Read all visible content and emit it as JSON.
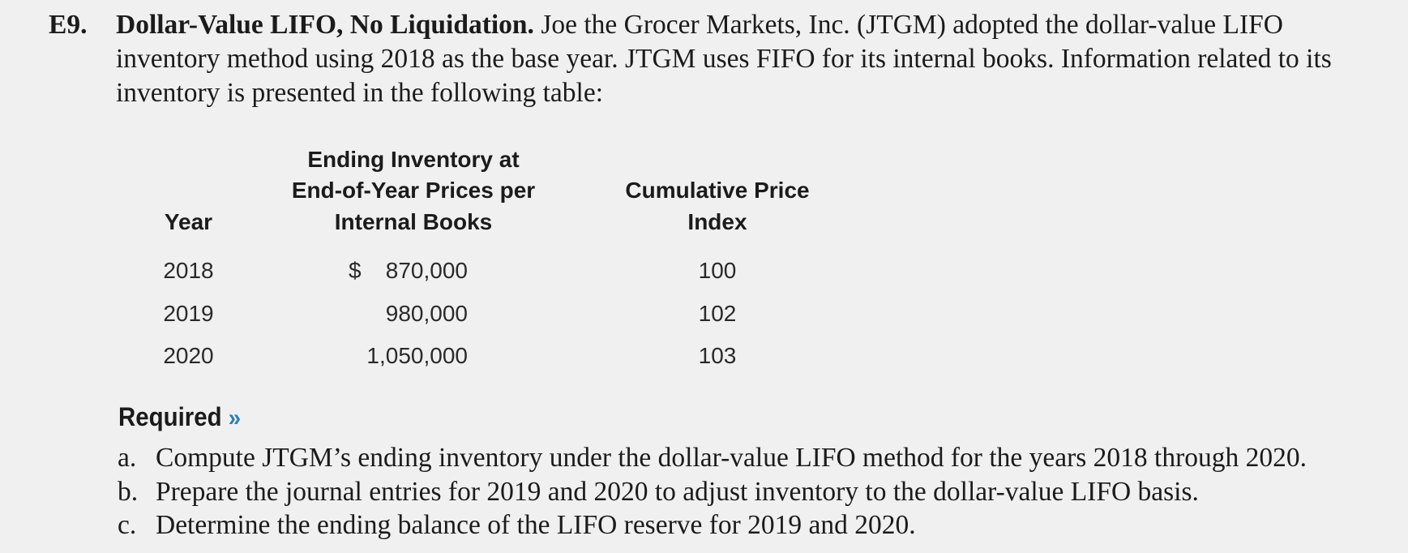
{
  "problem": {
    "number": "E9.",
    "title": "Dollar-Value LIFO, No Liquidation.",
    "body": "Joe the Grocer Markets, Inc. (JTGM) adopted the dollar-value LIFO inventory method using 2018 as the base year. JTGM uses FIFO for its internal books. Information related to its inventory is presented in the following table:"
  },
  "table": {
    "headers": {
      "year": "Year",
      "inventory_line1": "Ending Inventory at",
      "inventory_line2": "End-of-Year Prices per",
      "inventory_line3": "Internal Books",
      "index_line1": "Cumulative Price",
      "index_line2": "Index"
    },
    "currency_symbol": "$",
    "rows": [
      {
        "year": "2018",
        "inventory": "870,000",
        "index": "100"
      },
      {
        "year": "2019",
        "inventory": "980,000",
        "index": "102"
      },
      {
        "year": "2020",
        "inventory": "1,050,000",
        "index": "103"
      }
    ]
  },
  "required": {
    "heading": "Required",
    "chevrons": "»",
    "items": [
      {
        "letter": "a.",
        "text": "Compute JTGM’s ending inventory under the dollar-value LIFO method for the years 2018 through 2020."
      },
      {
        "letter": "b.",
        "text": "Prepare the journal entries for 2019 and 2020 to adjust inventory to the dollar-value LIFO basis."
      },
      {
        "letter": "c.",
        "text": "Determine the ending balance of the LIFO reserve for 2019 and 2020."
      }
    ]
  }
}
